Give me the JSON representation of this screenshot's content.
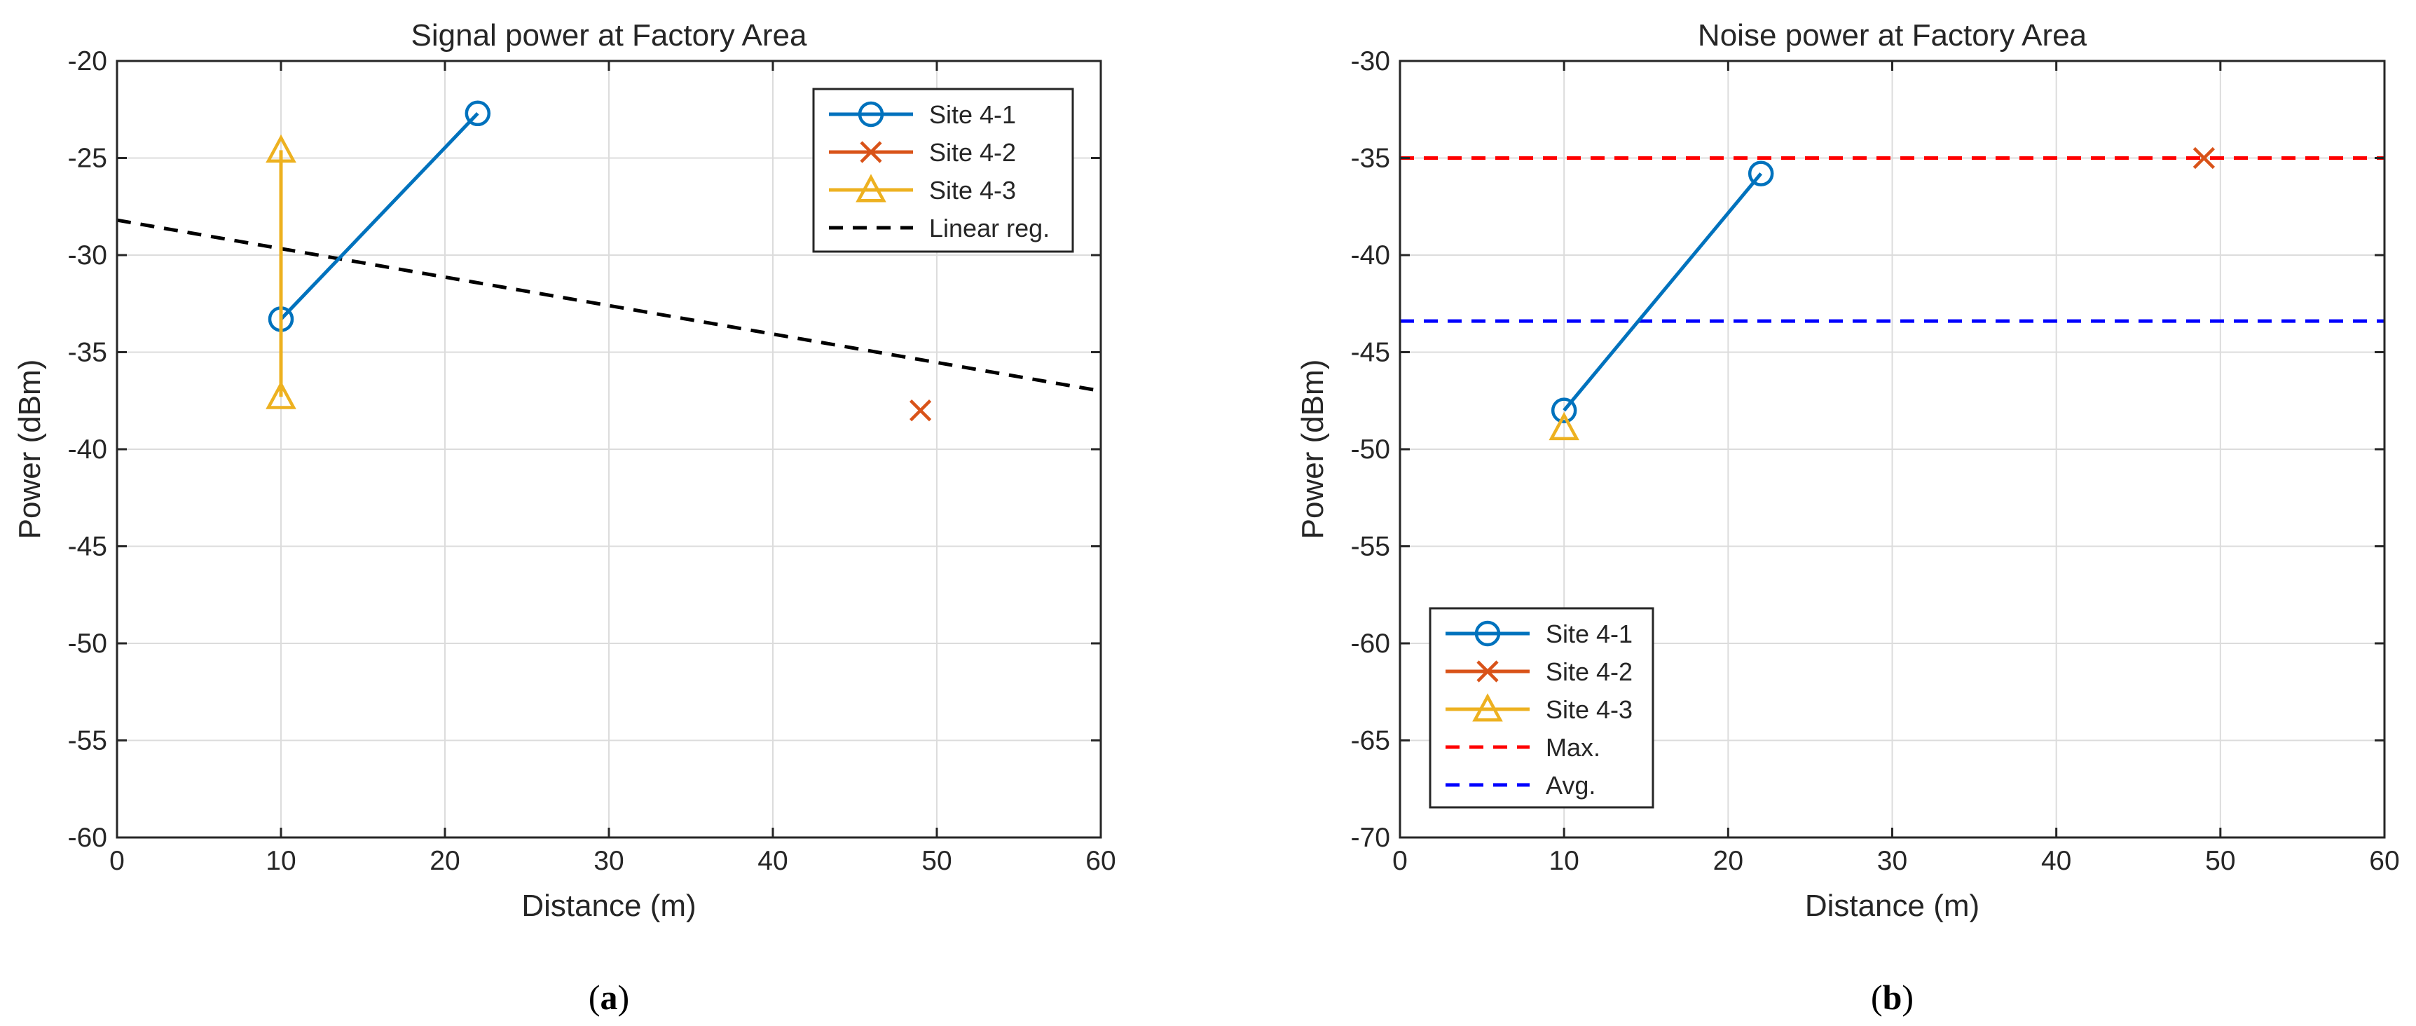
{
  "chart_data": [
    {
      "type": "line",
      "title": "Signal power at Factory Area",
      "xlabel": "Distance (m)",
      "ylabel": "Power (dBm)",
      "xlim": [
        0,
        60
      ],
      "ylim": [
        -60,
        -20
      ],
      "xticks": [
        0,
        10,
        20,
        30,
        40,
        50,
        60
      ],
      "yticks": [
        -20,
        -25,
        -30,
        -35,
        -40,
        -45,
        -50,
        -55,
        -60
      ],
      "grid": true,
      "caption_label": "a",
      "legend_position": "top-right",
      "series": [
        {
          "name": "Site 4-1",
          "color": "#0072BD",
          "marker": "circle",
          "dash": false,
          "x": [
            10,
            22
          ],
          "y": [
            -33.3,
            -22.7
          ]
        },
        {
          "name": "Site 4-2",
          "color": "#D95319",
          "marker": "x",
          "dash": false,
          "x": [
            49
          ],
          "y": [
            -38
          ]
        },
        {
          "name": "Site 4-3",
          "color": "#EDB120",
          "marker": "triangle",
          "dash": false,
          "x": [
            10,
            10
          ],
          "y": [
            -24.6,
            -37.3
          ]
        },
        {
          "name": "Linear reg.",
          "color": "#000000",
          "marker": "none",
          "dash": true,
          "x": [
            0,
            60
          ],
          "y": [
            -28.2,
            -37
          ]
        }
      ]
    },
    {
      "type": "line",
      "title": "Noise power at Factory Area",
      "xlabel": "Distance (m)",
      "ylabel": "Power (dBm)",
      "xlim": [
        0,
        60
      ],
      "ylim": [
        -70,
        -30
      ],
      "xticks": [
        0,
        10,
        20,
        30,
        40,
        50,
        60
      ],
      "yticks": [
        -30,
        -35,
        -40,
        -45,
        -50,
        -55,
        -60,
        -65,
        -70
      ],
      "grid": true,
      "caption_label": "b",
      "legend_position": "bottom-left",
      "series": [
        {
          "name": "Site 4-1",
          "color": "#0072BD",
          "marker": "circle",
          "dash": false,
          "x": [
            10,
            22
          ],
          "y": [
            -48,
            -35.8
          ]
        },
        {
          "name": "Site 4-2",
          "color": "#D95319",
          "marker": "x",
          "dash": false,
          "x": [
            49
          ],
          "y": [
            -35
          ]
        },
        {
          "name": "Site 4-3",
          "color": "#EDB120",
          "marker": "triangle",
          "dash": false,
          "x": [
            10
          ],
          "y": [
            -48.9
          ]
        },
        {
          "name": "Max.",
          "color": "#FF0000",
          "marker": "none",
          "dash": true,
          "x": [
            0,
            60
          ],
          "y": [
            -35,
            -35
          ]
        },
        {
          "name": "Avg.",
          "color": "#0000FF",
          "marker": "none",
          "dash": true,
          "x": [
            0,
            60
          ],
          "y": [
            -43.4,
            -43.4
          ]
        }
      ]
    }
  ]
}
